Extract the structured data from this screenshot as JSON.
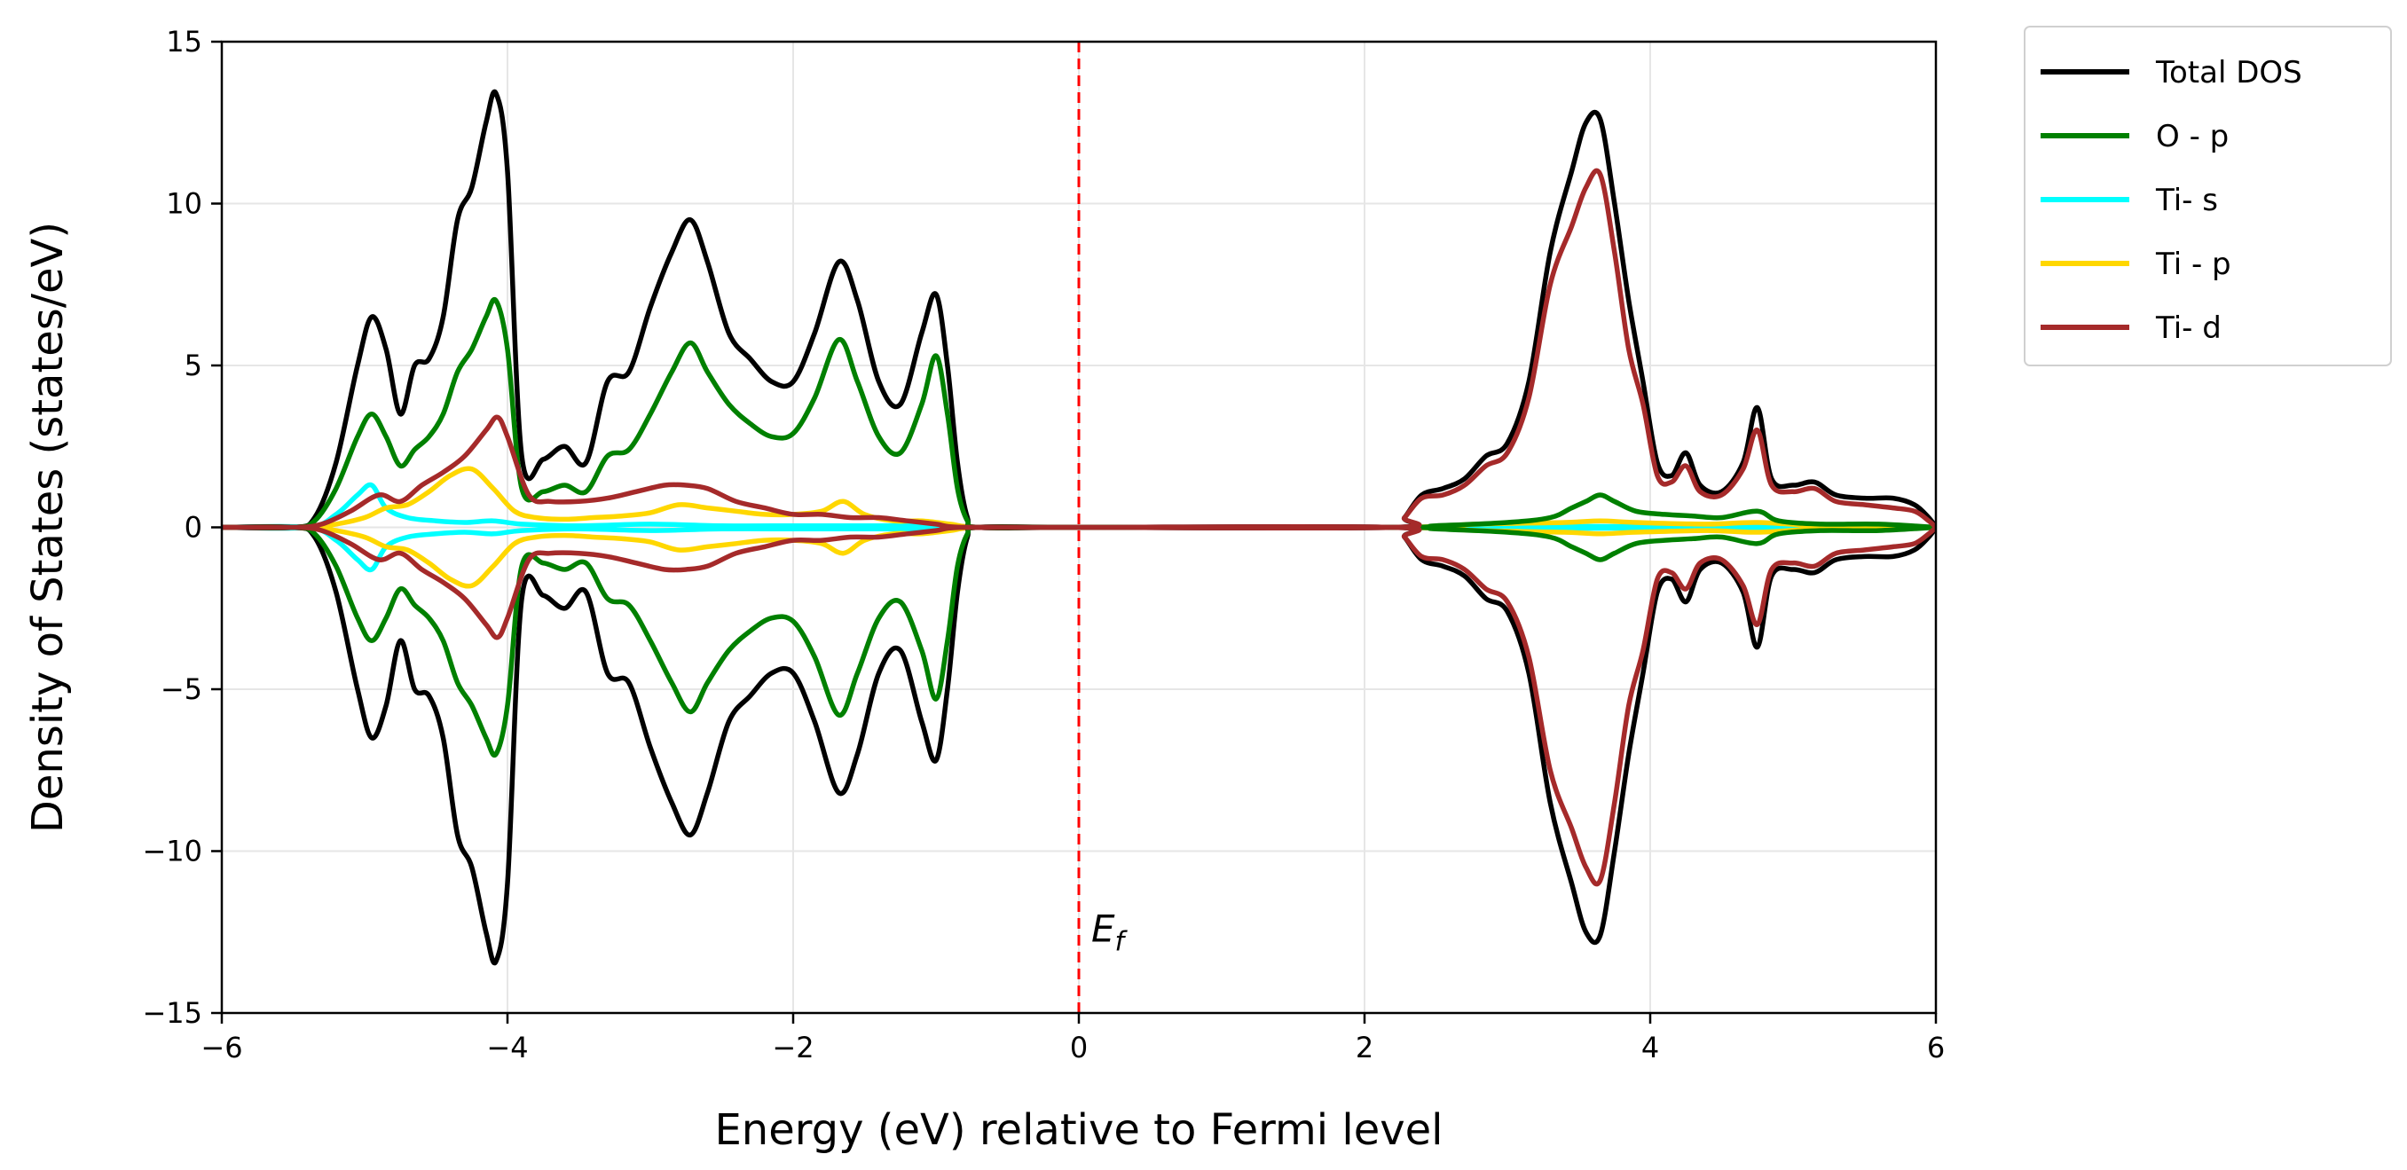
{
  "chart_data": {
    "type": "line",
    "title": "",
    "xlabel": "Energy (eV) relative to Fermi level",
    "ylabel": "Density of States (states/eV)",
    "xlim": [
      -6,
      6
    ],
    "ylim": [
      -15,
      15
    ],
    "xticks": [
      -6,
      -4,
      -2,
      0,
      2,
      4,
      6
    ],
    "yticks": [
      -15,
      -10,
      -5,
      0,
      5,
      10,
      15
    ],
    "xtick_labels": [
      "−6",
      "−4",
      "−2",
      "0",
      "2",
      "4",
      "6"
    ],
    "ytick_labels": [
      "−15",
      "−10",
      "−5",
      "0",
      "5",
      "10",
      "15"
    ],
    "grid": true,
    "legend_position": "outside-top-right",
    "annotation": {
      "label": "E",
      "subscript": "f",
      "x": 0,
      "color": "#ff0000",
      "style": "dashed"
    },
    "spin_mirrored": true,
    "series": [
      {
        "name": "Total DOS",
        "color": "#000000",
        "x": [
          -6,
          -5.5,
          -5.35,
          -5.2,
          -5.05,
          -4.95,
          -4.85,
          -4.75,
          -4.65,
          -4.55,
          -4.45,
          -4.35,
          -4.25,
          -4.15,
          -4.08,
          -4.0,
          -3.9,
          -3.75,
          -3.6,
          -3.45,
          -3.3,
          -3.15,
          -3.0,
          -2.85,
          -2.72,
          -2.6,
          -2.45,
          -2.3,
          -2.15,
          -2.0,
          -1.85,
          -1.68,
          -1.55,
          -1.4,
          -1.25,
          -1.1,
          -1.0,
          -0.92,
          -0.85,
          -0.78,
          -0.7,
          0,
          2.2,
          2.28,
          2.4,
          2.55,
          2.7,
          2.85,
          3.0,
          3.15,
          3.3,
          3.45,
          3.55,
          3.65,
          3.75,
          3.85,
          3.95,
          4.05,
          4.15,
          4.25,
          4.35,
          4.5,
          4.65,
          4.75,
          4.85,
          5.0,
          5.15,
          5.3,
          5.5,
          5.7,
          5.85,
          5.95,
          6
        ],
        "y": [
          0,
          0,
          0.3,
          2.0,
          5.0,
          6.5,
          5.5,
          3.5,
          5.0,
          5.2,
          6.5,
          9.5,
          10.5,
          12.5,
          13.4,
          11.0,
          2.2,
          2.1,
          2.5,
          2.0,
          4.5,
          4.8,
          6.8,
          8.5,
          9.5,
          8.2,
          6.0,
          5.2,
          4.5,
          4.5,
          6.0,
          8.2,
          7.0,
          4.5,
          3.8,
          6.0,
          7.2,
          5.0,
          2.0,
          0.3,
          0,
          0,
          0,
          0.3,
          1.0,
          1.2,
          1.5,
          2.2,
          2.6,
          4.5,
          8.5,
          11.0,
          12.5,
          12.6,
          10.0,
          7.0,
          4.5,
          2.0,
          1.6,
          2.3,
          1.3,
          1.1,
          2.0,
          3.7,
          1.5,
          1.3,
          1.4,
          1.0,
          0.9,
          0.9,
          0.7,
          0.3,
          0
        ]
      },
      {
        "name": "O - p",
        "color": "#008000",
        "x": [
          -6,
          -5.5,
          -5.35,
          -5.2,
          -5.05,
          -4.95,
          -4.85,
          -4.75,
          -4.65,
          -4.55,
          -4.45,
          -4.35,
          -4.25,
          -4.15,
          -4.08,
          -4.0,
          -3.9,
          -3.75,
          -3.6,
          -3.45,
          -3.3,
          -3.15,
          -3.0,
          -2.85,
          -2.72,
          -2.6,
          -2.45,
          -2.3,
          -2.15,
          -2.0,
          -1.85,
          -1.68,
          -1.55,
          -1.4,
          -1.25,
          -1.1,
          -1.0,
          -0.92,
          -0.85,
          -0.78,
          -0.7,
          0,
          2.2,
          2.5,
          3.0,
          3.3,
          3.45,
          3.55,
          3.65,
          3.75,
          3.9,
          4.1,
          4.3,
          4.5,
          4.75,
          4.9,
          5.2,
          5.6,
          6
        ],
        "y": [
          0,
          0,
          0.2,
          1.2,
          2.8,
          3.5,
          2.8,
          1.9,
          2.4,
          2.8,
          3.5,
          4.8,
          5.5,
          6.5,
          7.0,
          5.5,
          1.2,
          1.1,
          1.3,
          1.1,
          2.2,
          2.4,
          3.5,
          4.8,
          5.7,
          4.8,
          3.8,
          3.2,
          2.8,
          2.9,
          4.0,
          5.8,
          4.5,
          2.8,
          2.3,
          3.8,
          5.3,
          3.5,
          1.2,
          0.2,
          0,
          0,
          0,
          0.05,
          0.15,
          0.3,
          0.6,
          0.8,
          1.0,
          0.8,
          0.5,
          0.4,
          0.35,
          0.3,
          0.5,
          0.2,
          0.1,
          0.1,
          0
        ]
      },
      {
        "name": "Ti- s",
        "color": "#00ffff",
        "x": [
          -6,
          -5.4,
          -5.2,
          -5.05,
          -4.95,
          -4.85,
          -4.7,
          -4.5,
          -4.3,
          -4.1,
          -3.9,
          -3.5,
          -3.0,
          -2.5,
          -2.0,
          -1.7,
          -1.4,
          -1.1,
          -0.8,
          0,
          2.2,
          3.0,
          3.6,
          4.0,
          5.0,
          6
        ],
        "y": [
          0,
          0,
          0.4,
          1.0,
          1.3,
          0.6,
          0.3,
          0.2,
          0.15,
          0.2,
          0.1,
          0.05,
          0.1,
          0.05,
          0.05,
          0.05,
          0.05,
          0.05,
          0,
          0,
          0,
          0.02,
          0.03,
          0.02,
          0.01,
          0
        ]
      },
      {
        "name": "Ti - p",
        "color": "#ffd700",
        "x": [
          -6,
          -5.4,
          -5.2,
          -5.0,
          -4.85,
          -4.7,
          -4.55,
          -4.4,
          -4.25,
          -4.1,
          -3.95,
          -3.8,
          -3.6,
          -3.4,
          -3.2,
          -3.0,
          -2.8,
          -2.6,
          -2.4,
          -2.2,
          -2.0,
          -1.8,
          -1.65,
          -1.5,
          -1.3,
          -1.1,
          -0.9,
          -0.7,
          0,
          2.2,
          2.8,
          3.4,
          3.65,
          3.9,
          4.4,
          4.75,
          5.2,
          6
        ],
        "y": [
          0,
          0,
          0.1,
          0.3,
          0.6,
          0.7,
          1.1,
          1.6,
          1.8,
          1.2,
          0.5,
          0.3,
          0.25,
          0.3,
          0.35,
          0.45,
          0.7,
          0.6,
          0.5,
          0.4,
          0.4,
          0.5,
          0.8,
          0.4,
          0.2,
          0.2,
          0.1,
          0,
          0,
          0,
          0.1,
          0.15,
          0.2,
          0.15,
          0.1,
          0.15,
          0.05,
          0
        ]
      },
      {
        "name": "Ti- d",
        "color": "#a52a2a",
        "x": [
          -6,
          -5.5,
          -5.3,
          -5.1,
          -4.9,
          -4.75,
          -4.6,
          -4.45,
          -4.3,
          -4.15,
          -4.07,
          -4.0,
          -3.85,
          -3.7,
          -3.5,
          -3.3,
          -3.1,
          -2.9,
          -2.75,
          -2.6,
          -2.4,
          -2.2,
          -2.0,
          -1.8,
          -1.6,
          -1.4,
          -1.2,
          -1.0,
          -0.8,
          0,
          2.2,
          2.28,
          2.4,
          2.55,
          2.7,
          2.85,
          3.0,
          3.15,
          3.3,
          3.45,
          3.55,
          3.65,
          3.75,
          3.85,
          3.95,
          4.05,
          4.15,
          4.25,
          4.35,
          4.5,
          4.65,
          4.75,
          4.85,
          5.0,
          5.15,
          5.3,
          5.5,
          5.7,
          5.85,
          5.95,
          6
        ],
        "y": [
          0,
          0,
          0.1,
          0.5,
          1.0,
          0.8,
          1.3,
          1.7,
          2.2,
          3.0,
          3.4,
          2.8,
          1.0,
          0.8,
          0.8,
          0.9,
          1.1,
          1.3,
          1.3,
          1.2,
          0.8,
          0.6,
          0.4,
          0.4,
          0.3,
          0.3,
          0.2,
          0.1,
          0,
          0,
          0,
          0.3,
          0.9,
          1.0,
          1.3,
          1.9,
          2.3,
          4.0,
          7.5,
          9.3,
          10.5,
          10.9,
          8.5,
          5.5,
          3.8,
          1.6,
          1.4,
          1.9,
          1.1,
          1.0,
          1.8,
          3.0,
          1.3,
          1.1,
          1.2,
          0.8,
          0.7,
          0.6,
          0.5,
          0.2,
          0
        ]
      }
    ]
  }
}
